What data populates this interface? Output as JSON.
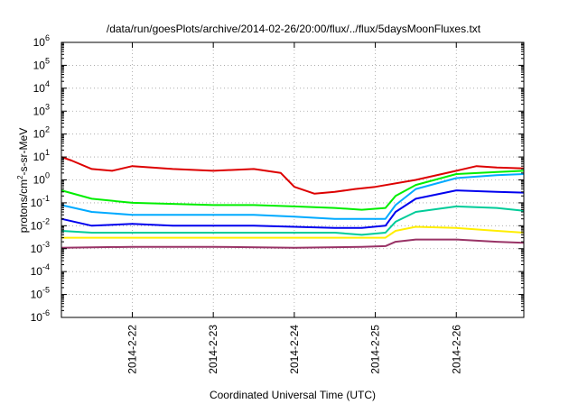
{
  "chart_data": {
    "type": "line",
    "title": "/data/run/goesPlots/archive/2014-02-26/20:00/flux/../flux/5daysMoonFluxes.txt",
    "xlabel": "Coordinated Universal Time (UTC)",
    "ylabel_parts": {
      "base": "protons/cm",
      "sup": "2",
      "rest": "-s-sr-MeV"
    },
    "yscale": "log",
    "xlim": [
      "2014-02-21T03:00",
      "2014-02-26T20:00"
    ],
    "ylim": [
      1e-06,
      1000000.0
    ],
    "grid": true,
    "legend": "none",
    "xticks": [
      "2014-2-22",
      "2014-2-23",
      "2014-2-24",
      "2014-2-25",
      "2014-2-26"
    ],
    "yticks": [
      {
        "base": "10",
        "exp": "-6"
      },
      {
        "base": "10",
        "exp": "-5"
      },
      {
        "base": "10",
        "exp": "-4"
      },
      {
        "base": "10",
        "exp": "-3"
      },
      {
        "base": "10",
        "exp": "-2"
      },
      {
        "base": "10",
        "exp": "-1"
      },
      {
        "base": "10",
        "exp": "0"
      },
      {
        "base": "10",
        "exp": "1"
      },
      {
        "base": "10",
        "exp": "2"
      },
      {
        "base": "10",
        "exp": "3"
      },
      {
        "base": "10",
        "exp": "4"
      },
      {
        "base": "10",
        "exp": "5"
      },
      {
        "base": "10",
        "exp": "6"
      }
    ],
    "series": [
      {
        "color": "#dd0000",
        "x": [
          "2014-02-21T03:00",
          "2014-02-21T06:00",
          "2014-02-21T12:00",
          "2014-02-21T18:00",
          "2014-02-22T00:00",
          "2014-02-22T12:00",
          "2014-02-23T00:00",
          "2014-02-23T12:00",
          "2014-02-23T20:00",
          "2014-02-24T00:00",
          "2014-02-24T06:00",
          "2014-02-24T12:00",
          "2014-02-24T18:00",
          "2014-02-25T00:00",
          "2014-02-25T12:00",
          "2014-02-26T00:00",
          "2014-02-26T06:00",
          "2014-02-26T12:00",
          "2014-02-26T20:00"
        ],
        "values": [
          10,
          7,
          3,
          2.5,
          4,
          3,
          2.5,
          3,
          2,
          0.5,
          0.25,
          0.3,
          0.4,
          0.5,
          1,
          2.5,
          4,
          3.5,
          3.2
        ]
      },
      {
        "color": "#00ee00",
        "x": [
          "2014-02-21T03:00",
          "2014-02-21T12:00",
          "2014-02-22T00:00",
          "2014-02-22T12:00",
          "2014-02-23T00:00",
          "2014-02-23T12:00",
          "2014-02-24T00:00",
          "2014-02-24T12:00",
          "2014-02-24T20:00",
          "2014-02-25T03:00",
          "2014-02-25T06:00",
          "2014-02-25T12:00",
          "2014-02-26T00:00",
          "2014-02-26T12:00",
          "2014-02-26T20:00"
        ],
        "values": [
          0.35,
          0.15,
          0.1,
          0.09,
          0.08,
          0.08,
          0.07,
          0.06,
          0.05,
          0.06,
          0.2,
          0.6,
          1.8,
          2.2,
          2.5
        ]
      },
      {
        "color": "#00aaff",
        "x": [
          "2014-02-21T03:00",
          "2014-02-21T12:00",
          "2014-02-22T00:00",
          "2014-02-22T12:00",
          "2014-02-23T00:00",
          "2014-02-23T12:00",
          "2014-02-24T00:00",
          "2014-02-24T12:00",
          "2014-02-24T20:00",
          "2014-02-25T03:00",
          "2014-02-25T06:00",
          "2014-02-25T12:00",
          "2014-02-26T00:00",
          "2014-02-26T12:00",
          "2014-02-26T20:00"
        ],
        "values": [
          0.08,
          0.04,
          0.03,
          0.03,
          0.03,
          0.03,
          0.025,
          0.02,
          0.02,
          0.02,
          0.08,
          0.4,
          1.2,
          1.6,
          1.8
        ]
      },
      {
        "color": "#0000ee",
        "x": [
          "2014-02-21T03:00",
          "2014-02-21T12:00",
          "2014-02-22T00:00",
          "2014-02-22T12:00",
          "2014-02-23T00:00",
          "2014-02-23T12:00",
          "2014-02-24T00:00",
          "2014-02-24T12:00",
          "2014-02-24T20:00",
          "2014-02-25T03:00",
          "2014-02-25T06:00",
          "2014-02-25T12:00",
          "2014-02-26T00:00",
          "2014-02-26T12:00",
          "2014-02-26T20:00"
        ],
        "values": [
          0.02,
          0.01,
          0.012,
          0.01,
          0.01,
          0.01,
          0.009,
          0.008,
          0.008,
          0.01,
          0.04,
          0.15,
          0.35,
          0.3,
          0.28
        ]
      },
      {
        "color": "#00cc99",
        "x": [
          "2014-02-21T03:00",
          "2014-02-21T12:00",
          "2014-02-22T00:00",
          "2014-02-22T12:00",
          "2014-02-23T00:00",
          "2014-02-23T12:00",
          "2014-02-24T00:00",
          "2014-02-24T12:00",
          "2014-02-24T20:00",
          "2014-02-25T03:00",
          "2014-02-25T06:00",
          "2014-02-25T12:00",
          "2014-02-26T00:00",
          "2014-02-26T12:00",
          "2014-02-26T20:00"
        ],
        "values": [
          0.006,
          0.005,
          0.005,
          0.005,
          0.005,
          0.005,
          0.005,
          0.005,
          0.004,
          0.005,
          0.015,
          0.04,
          0.07,
          0.06,
          0.045
        ]
      },
      {
        "color": "#ffee00",
        "x": [
          "2014-02-21T03:00",
          "2014-02-22T00:00",
          "2014-02-23T00:00",
          "2014-02-24T00:00",
          "2014-02-24T20:00",
          "2014-02-25T03:00",
          "2014-02-25T06:00",
          "2014-02-25T12:00",
          "2014-02-26T00:00",
          "2014-02-26T12:00",
          "2014-02-26T20:00"
        ],
        "values": [
          0.003,
          0.003,
          0.003,
          0.003,
          0.003,
          0.003,
          0.006,
          0.009,
          0.008,
          0.006,
          0.005
        ]
      },
      {
        "color": "#993366",
        "x": [
          "2014-02-21T03:00",
          "2014-02-22T00:00",
          "2014-02-23T00:00",
          "2014-02-24T00:00",
          "2014-02-24T20:00",
          "2014-02-25T03:00",
          "2014-02-25T06:00",
          "2014-02-25T12:00",
          "2014-02-26T00:00",
          "2014-02-26T12:00",
          "2014-02-26T20:00"
        ],
        "values": [
          0.0011,
          0.0012,
          0.0012,
          0.0011,
          0.0012,
          0.0013,
          0.002,
          0.0025,
          0.0025,
          0.002,
          0.0018
        ]
      }
    ]
  }
}
